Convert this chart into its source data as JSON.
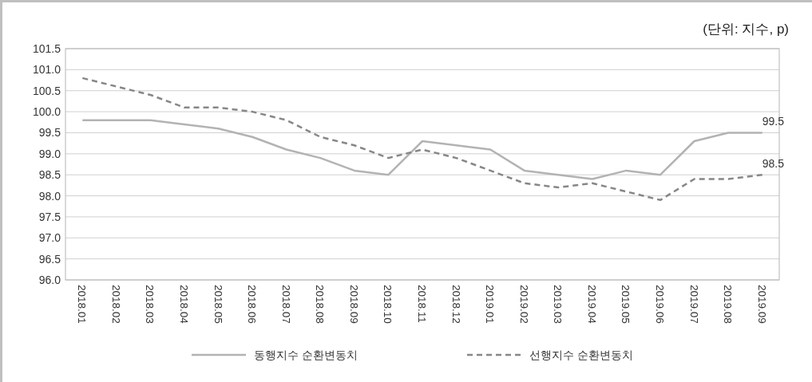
{
  "chart_data": {
    "type": "line",
    "categories": [
      "2018.01",
      "2018.02",
      "2018.03",
      "2018.04",
      "2018.05",
      "2018.06",
      "2018.07",
      "2018.08",
      "2018.09",
      "2018.10",
      "2018.11",
      "2018.12",
      "2019.01",
      "2019.02",
      "2019.03",
      "2019.04",
      "2019.05",
      "2019.06",
      "2019.07",
      "2019.08",
      "2019.09"
    ],
    "series": [
      {
        "name": "동행지수 순환변동치",
        "color": "#b3b3b3",
        "line_style": "solid",
        "values": [
          99.8,
          99.8,
          99.8,
          99.7,
          99.6,
          99.4,
          99.1,
          98.9,
          98.6,
          98.5,
          99.3,
          99.2,
          99.1,
          98.6,
          98.5,
          98.4,
          98.6,
          98.5,
          99.3,
          99.5,
          99.5
        ],
        "value_labels": [
          null,
          null,
          null,
          null,
          null,
          null,
          null,
          null,
          null,
          null,
          null,
          null,
          null,
          null,
          null,
          null,
          null,
          null,
          null,
          null,
          "99.5"
        ]
      },
      {
        "name": "선행지수 순환변동치",
        "color": "#878787",
        "line_style": "dashed",
        "values": [
          100.8,
          100.6,
          100.4,
          100.1,
          100.1,
          100.0,
          99.8,
          99.4,
          99.2,
          98.9,
          99.1,
          98.9,
          98.6,
          98.3,
          98.2,
          98.3,
          98.1,
          97.9,
          98.4,
          98.4,
          98.5
        ],
        "value_labels": [
          null,
          null,
          null,
          null,
          null,
          null,
          null,
          null,
          null,
          null,
          null,
          null,
          null,
          null,
          null,
          null,
          null,
          null,
          null,
          null,
          "98.5"
        ]
      }
    ],
    "ylim": [
      96,
      101.5
    ],
    "yticks": [
      {
        "value": 96,
        "label": "96.0"
      },
      96.5,
      {
        "value": 97,
        "label": "97.0"
      },
      97.5,
      {
        "value": 98,
        "label": "98.0"
      },
      98.5,
      {
        "value": 99,
        "label": "99.0"
      },
      99.5,
      {
        "value": 100,
        "label": "100.0"
      },
      100.5,
      {
        "value": 101,
        "label": "101.0"
      },
      101.5
    ],
    "grid": "y",
    "legend": "bottom",
    "marker": "none",
    "annotations": [
      "(단위: 지수, p)"
    ]
  }
}
